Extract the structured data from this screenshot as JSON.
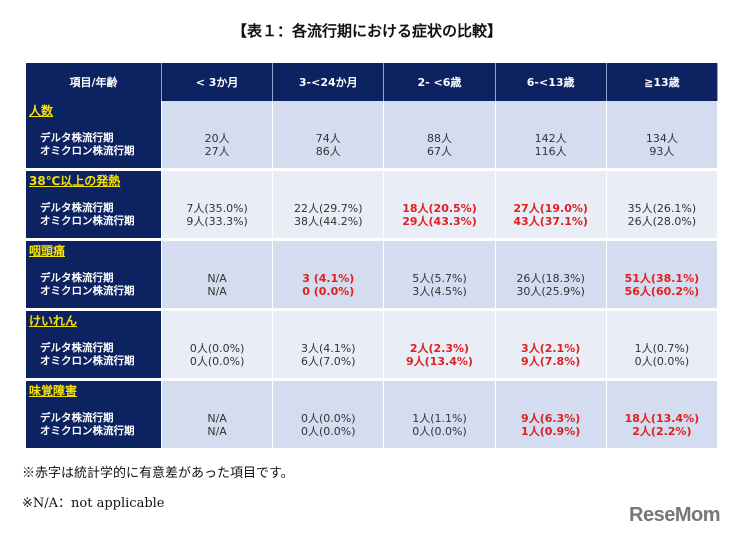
{
  "title": "【表１：各流行期における症状の比較】",
  "headers": [
    "項目/年齢",
    "< 3か月",
    "3-<24か月",
    "2- <6歳",
    "6-<13歳",
    "≧13歳"
  ],
  "period_labels": [
    "デルタ株流行期",
    "オミクロン株流行期"
  ],
  "sections": [
    {
      "name": "人数",
      "cells": [
        {
          "v": [
            "20人",
            "27人"
          ],
          "sig": false
        },
        {
          "v": [
            "74人",
            "86人"
          ],
          "sig": false
        },
        {
          "v": [
            "88人",
            "67人"
          ],
          "sig": false
        },
        {
          "v": [
            "142人",
            "116人"
          ],
          "sig": false
        },
        {
          "v": [
            "134人",
            "93人"
          ],
          "sig": false
        }
      ]
    },
    {
      "name": "38℃以上の発熱",
      "cells": [
        {
          "v": [
            "7人(35.0%)",
            "9人(33.3%)"
          ],
          "sig": false
        },
        {
          "v": [
            "22人(29.7%)",
            "38人(44.2%)"
          ],
          "sig": false
        },
        {
          "v": [
            "18人(20.5%)",
            "29人(43.3%)"
          ],
          "sig": true
        },
        {
          "v": [
            "27人(19.0%)",
            "43人(37.1%)"
          ],
          "sig": true
        },
        {
          "v": [
            "35人(26.1%)",
            "26人(28.0%)"
          ],
          "sig": false
        }
      ]
    },
    {
      "name": "咽頭痛",
      "cells": [
        {
          "v": [
            "N/A",
            "N/A"
          ],
          "sig": false
        },
        {
          "v": [
            "3 (4.1%)",
            "0 (0.0%)"
          ],
          "sig": true
        },
        {
          "v": [
            "5人(5.7%)",
            "3人(4.5%)"
          ],
          "sig": false
        },
        {
          "v": [
            "26人(18.3%)",
            "30人(25.9%)"
          ],
          "sig": false
        },
        {
          "v": [
            "51人(38.1%)",
            "56人(60.2%)"
          ],
          "sig": true
        }
      ]
    },
    {
      "name": "けいれん",
      "cells": [
        {
          "v": [
            "0人(0.0%)",
            "0人(0.0%)"
          ],
          "sig": false
        },
        {
          "v": [
            "3人(4.1%)",
            "6人(7.0%)"
          ],
          "sig": false
        },
        {
          "v": [
            "2人(2.3%)",
            "9人(13.4%)"
          ],
          "sig": true
        },
        {
          "v": [
            "3人(2.1%)",
            "9人(7.8%)"
          ],
          "sig": true
        },
        {
          "v": [
            "1人(0.7%)",
            "0人(0.0%)"
          ],
          "sig": false
        }
      ]
    },
    {
      "name": "味覚障害",
      "cells": [
        {
          "v": [
            "N/A",
            "N/A"
          ],
          "sig": false
        },
        {
          "v": [
            "0人(0.0%)",
            "0人(0.0%)"
          ],
          "sig": false
        },
        {
          "v": [
            "1人(1.1%)",
            "0人(0.0%)"
          ],
          "sig": false
        },
        {
          "v": [
            "9人(6.3%)",
            "1人(0.9%)"
          ],
          "sig": true
        },
        {
          "v": [
            "18人(13.4%)",
            "2人(2.2%)"
          ],
          "sig": true
        }
      ]
    }
  ],
  "notes": [
    "※赤字は統計学的に有意差があった項目です。",
    "※N/A：not applicable"
  ],
  "logo": "ReseMom",
  "colors": {
    "header": "#0d2260",
    "significant": "#e02020",
    "category": "#f5e000"
  }
}
